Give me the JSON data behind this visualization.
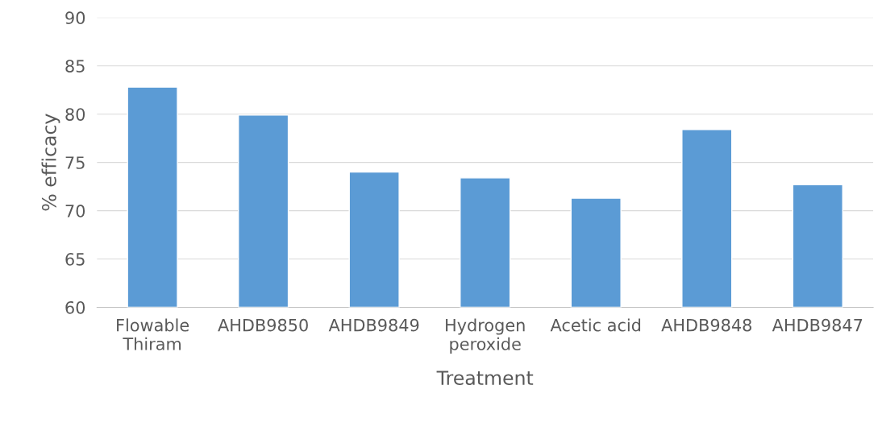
{
  "chart_data": {
    "type": "bar",
    "xlabel": "Treatment",
    "ylabel": "% efficacy",
    "categories": [
      "Flowable\nThiram",
      "AHDB9850",
      "AHDB9849",
      "Hydrogen\nperoxide",
      "Acetic acid",
      "AHDB9848",
      "AHDB9847"
    ],
    "values": [
      82.8,
      79.9,
      74.0,
      73.4,
      71.3,
      78.4,
      72.7
    ],
    "color": "#5b9bd5",
    "ylim": [
      60,
      90
    ],
    "yticks": [
      60,
      65,
      70,
      75,
      80,
      85,
      90
    ],
    "grid": "y"
  }
}
